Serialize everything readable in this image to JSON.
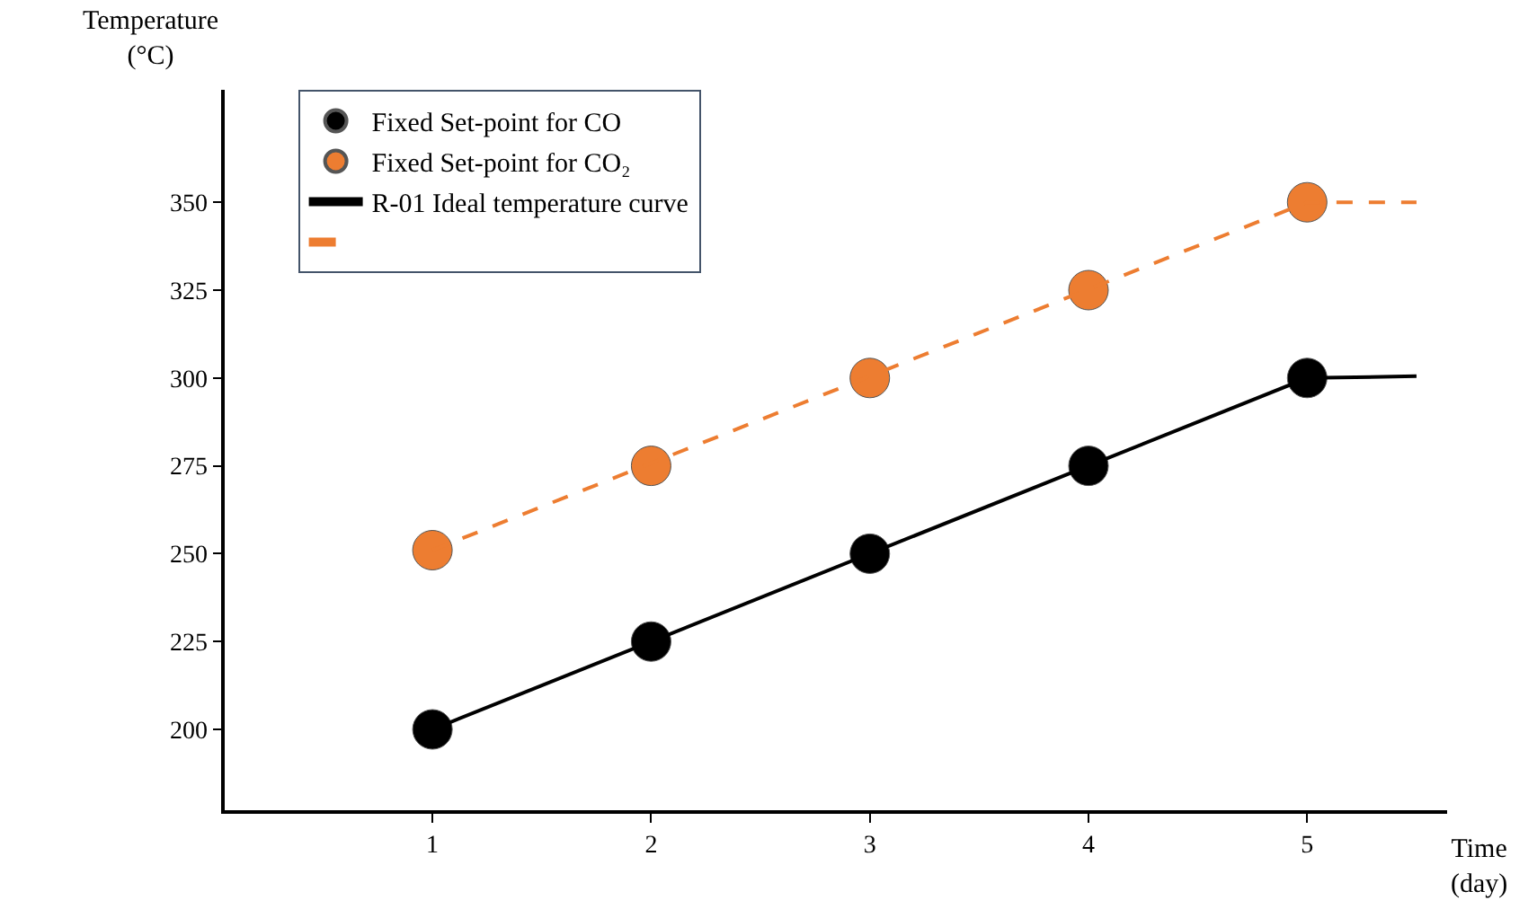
{
  "chart_data": {
    "type": "scatter",
    "xlabel": "Time\n(day)",
    "ylabel": "Temperature\n(°C)",
    "x": [
      1,
      2,
      3,
      4,
      5
    ],
    "series": [
      {
        "name": "Fixed Set-point for CO",
        "color": "#000000",
        "values": [
          200,
          225,
          250,
          275,
          300
        ],
        "marker": "circle"
      },
      {
        "name": "Fixed Set-point for CO₂",
        "color": "#ed7d31",
        "values": [
          251,
          275,
          300,
          325,
          350
        ],
        "marker": "circle"
      },
      {
        "name": "R-01 Ideal temperature curve",
        "type": "line",
        "color": "#000000",
        "x": [
          1,
          5,
          5.5
        ],
        "values": [
          200,
          300,
          300.5
        ],
        "line_style": "solid",
        "marker": "none"
      },
      {
        "type": "line",
        "color": "#ed7d31",
        "x": [
          1,
          5,
          5.5
        ],
        "values": [
          251,
          350,
          350
        ],
        "line_style": "dashed",
        "marker": "none"
      }
    ],
    "xlim": [
      0.05,
      5.64
    ],
    "xticks": [
      1,
      2,
      3,
      4,
      5
    ],
    "ylim": [
      177,
      382
    ],
    "yticks": [
      200,
      225,
      250,
      275,
      300,
      325,
      350
    ],
    "legend": "top left"
  }
}
